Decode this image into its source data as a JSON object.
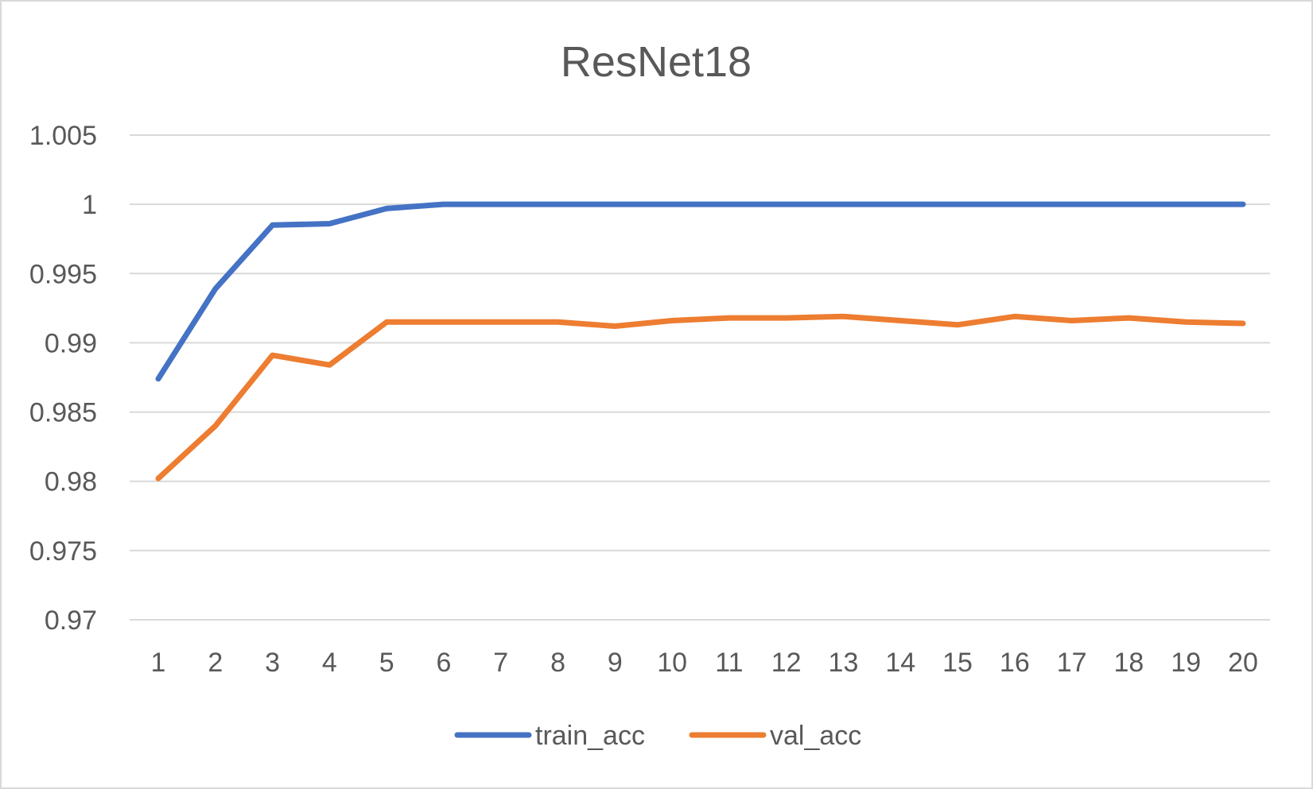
{
  "chart_data": {
    "type": "line",
    "title": "ResNet18",
    "xlabel": "",
    "ylabel": "",
    "x": [
      1,
      2,
      3,
      4,
      5,
      6,
      7,
      8,
      9,
      10,
      11,
      12,
      13,
      14,
      15,
      16,
      17,
      18,
      19,
      20
    ],
    "ylim": [
      0.97,
      1.005
    ],
    "yticks": [
      0.97,
      0.975,
      0.98,
      0.985,
      0.99,
      0.995,
      1,
      1.005
    ],
    "ytick_labels": [
      "0.97",
      "0.975",
      "0.98",
      "0.985",
      "0.99",
      "0.995",
      "1",
      "1.005"
    ],
    "grid": true,
    "legend_position": "bottom",
    "series": [
      {
        "name": "train_acc",
        "color": "#4472C4",
        "values": [
          0.9874,
          0.9939,
          0.9985,
          0.9986,
          0.9997,
          1.0,
          1.0,
          1.0,
          1.0,
          1.0,
          1.0,
          1.0,
          1.0,
          1.0,
          1.0,
          1.0,
          1.0,
          1.0,
          1.0,
          1.0
        ]
      },
      {
        "name": "val_acc",
        "color": "#ED7D31",
        "values": [
          0.9802,
          0.984,
          0.9891,
          0.9884,
          0.9915,
          0.9915,
          0.9915,
          0.9915,
          0.9912,
          0.9916,
          0.9918,
          0.9918,
          0.9919,
          0.9916,
          0.9913,
          0.9919,
          0.9916,
          0.9918,
          0.9915,
          0.9914
        ]
      }
    ]
  }
}
